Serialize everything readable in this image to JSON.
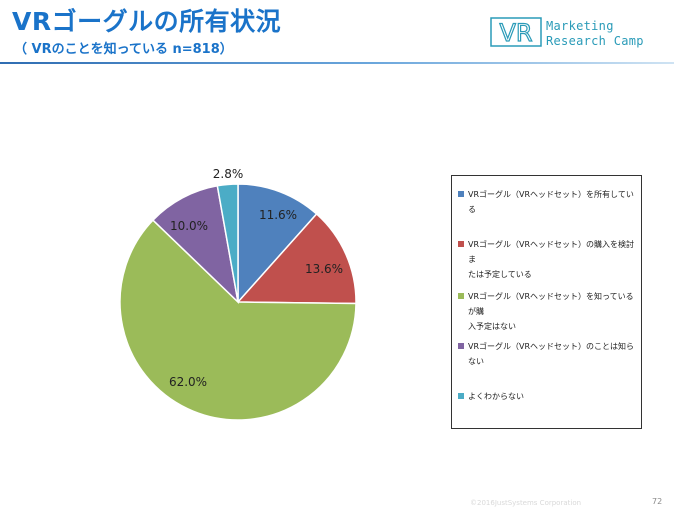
{
  "header": {
    "title": "VRゴーグルの所有状況",
    "subtitle": "（ VRのことを知っている n=818）"
  },
  "logo": {
    "mark": "VR",
    "line1": "Marketing",
    "line2": "Research Camp",
    "color": "#2a9bb8"
  },
  "chart_data": {
    "type": "pie",
    "title": "",
    "slices": [
      {
        "label": "VRゴーグル（VRヘッドセット）を所有している",
        "value": 11.6,
        "display": "11.6%",
        "color": "#4f81bd"
      },
      {
        "label": "VRゴーグル（VRヘッドセット）の購入を検討または予定している",
        "value": 13.6,
        "display": "13.6%",
        "color": "#c0504d"
      },
      {
        "label": "VRゴーグル（VRヘッドセット）を知っているが購入予定はない",
        "value": 62.0,
        "display": "62.0%",
        "color": "#9bbb59"
      },
      {
        "label": "VRゴーグル（VRヘッドセット）のことは知らない",
        "value": 10.0,
        "display": "10.0%",
        "color": "#8064a2"
      },
      {
        "label": "よくわからない",
        "value": 2.8,
        "display": "2.8%",
        "color": "#4bacc6"
      }
    ],
    "legend_position": "right",
    "start_angle": "12 o'clock, clockwise"
  },
  "legend": {
    "items": [
      {
        "line1": "VRゴーグル（VRヘッドセット）を所有している",
        "line2": ""
      },
      {
        "line1": "VRゴーグル（VRヘッドセット）の購入を検討ま",
        "line2": "たは予定している"
      },
      {
        "line1": "VRゴーグル（VRヘッドセット）を知っているが購",
        "line2": "入予定はない"
      },
      {
        "line1": "VRゴーグル（VRヘッドセット）のことは知らない",
        "line2": ""
      },
      {
        "line1": "よくわからない",
        "line2": ""
      }
    ]
  },
  "footer": {
    "copyright": "©2016JustSystems Corporation",
    "page_number": "72"
  }
}
